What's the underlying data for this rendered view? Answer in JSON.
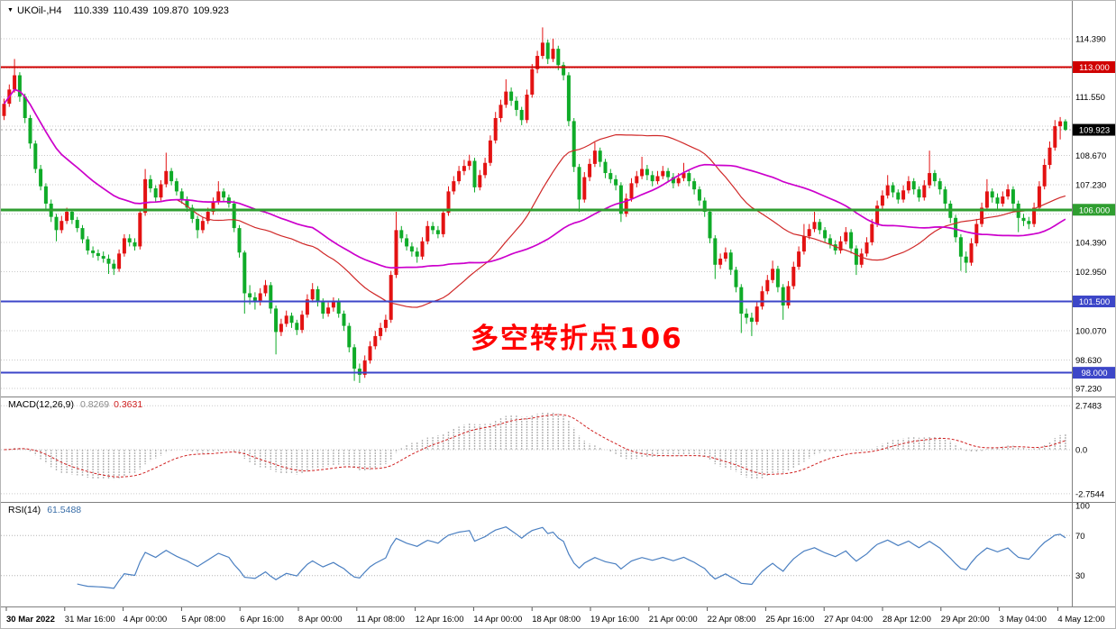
{
  "header": {
    "marker": "▼",
    "symbol": "UKOil-,H4",
    "open": "110.339",
    "high": "110.439",
    "low": "109.870",
    "close": "109.923"
  },
  "annotation": {
    "text": "多空转折点106",
    "color": "#ff0000"
  },
  "indicators": {
    "macd_label": "MACD(12,26,9)",
    "macd_value": "0.8269",
    "macd_signal_value": "0.3631",
    "rsi_label": "RSI(14)",
    "rsi_value": "61.5488"
  },
  "colors": {
    "up": "#e31212",
    "down": "#0fab28",
    "grid": "#c9c9c9",
    "current_price_line": "#a8a8a8",
    "macd_hist": "#b4b4b4",
    "macd_signal": "#d02020",
    "rsi_line": "#4a7fc1",
    "rsi_level": "#b4b4b4",
    "separator": "#808080",
    "axis_text": "#000000"
  },
  "chart_data": {
    "type": "candlestick",
    "symbol": "UKOil-",
    "timeframe": "H4",
    "last_ohlc": {
      "open": 110.339,
      "high": 110.439,
      "low": 109.87,
      "close": 109.923
    },
    "current_price": 109.923,
    "price_axis": {
      "ticks": [
        114.39,
        112.95,
        111.55,
        110.11,
        108.67,
        107.23,
        105.79,
        104.39,
        102.95,
        101.51,
        100.07,
        98.63,
        97.23
      ],
      "visible_labels": [
        "114.390",
        "111.550",
        "108.670",
        "107.230",
        "104.390",
        "102.950",
        "100.070",
        "98.630",
        "97.230"
      ],
      "badges": [
        {
          "label": "113.000",
          "price": 113.0,
          "color": "#d00000"
        },
        {
          "label": "109.923",
          "price": 109.923,
          "color": "#000000"
        },
        {
          "label": "106.000",
          "price": 106.0,
          "color": "#2f9e30"
        },
        {
          "label": "101.500",
          "price": 101.5,
          "color": "#3c46c8"
        },
        {
          "label": "98.000",
          "price": 98.0,
          "color": "#3c46c8"
        }
      ]
    },
    "hlines": [
      {
        "price": 113.0,
        "color": "#d00000",
        "width": 2
      },
      {
        "price": 106.0,
        "color": "#2f9e30",
        "width": 3
      },
      {
        "price": 101.5,
        "color": "#3c46c8",
        "width": 2
      },
      {
        "price": 98.0,
        "color": "#3c46c8",
        "width": 2
      }
    ],
    "moving_averages": [
      {
        "period": 34,
        "color": "#d02828",
        "width": 1.2,
        "name": "ma-fast"
      },
      {
        "period": 60,
        "color": "#cc00cc",
        "width": 1.7,
        "name": "ma-slow"
      }
    ],
    "macd": {
      "params": [
        12,
        26,
        9
      ],
      "value": 0.8269,
      "signal": 0.3631,
      "levels": [
        2.7483,
        0,
        -2.7544
      ],
      "scale": [
        "2.7483",
        "0.0",
        "-2.7544"
      ],
      "range": [
        -3.1,
        3.1
      ]
    },
    "rsi": {
      "period": 14,
      "value": 61.5488,
      "levels": [
        70,
        30
      ],
      "scale": [
        "100",
        "70",
        "30"
      ],
      "range": [
        0,
        100
      ]
    },
    "time_axis": [
      "30 Mar 2022",
      "31 Mar 16:00",
      "4 Apr 00:00",
      "5 Apr 08:00",
      "6 Apr 16:00",
      "8 Apr 00:00",
      "11 Apr 08:00",
      "12 Apr 16:00",
      "14 Apr 00:00",
      "18 Apr 08:00",
      "19 Apr 16:00",
      "21 Apr 00:00",
      "22 Apr 08:00",
      "25 Apr 16:00",
      "27 Apr 04:00",
      "28 Apr 12:00",
      "29 Apr 20:00",
      "3 May 04:00",
      "4 May 12:00"
    ],
    "candles": [
      [
        110.6,
        111.45,
        110.4,
        111.2
      ],
      [
        111.2,
        112.15,
        111.05,
        111.9
      ],
      [
        111.9,
        113.4,
        111.75,
        112.6
      ],
      [
        112.6,
        112.75,
        111.3,
        111.55
      ],
      [
        111.55,
        111.7,
        110.25,
        110.5
      ],
      [
        110.5,
        110.65,
        109.0,
        109.25
      ],
      [
        109.25,
        109.4,
        107.8,
        108.0
      ],
      [
        108.0,
        108.2,
        106.95,
        107.15
      ],
      [
        107.15,
        107.3,
        106.05,
        106.3
      ],
      [
        106.3,
        106.5,
        105.4,
        105.65
      ],
      [
        105.65,
        105.8,
        104.45,
        105.0
      ],
      [
        105.0,
        105.7,
        104.85,
        105.45
      ],
      [
        105.45,
        106.1,
        105.3,
        105.9
      ],
      [
        105.9,
        106.05,
        105.3,
        105.5
      ],
      [
        105.5,
        105.65,
        104.9,
        105.1
      ],
      [
        105.1,
        105.25,
        104.35,
        104.55
      ],
      [
        104.55,
        104.7,
        103.8,
        104.0
      ],
      [
        104.0,
        104.2,
        103.65,
        103.87
      ],
      [
        103.87,
        104.05,
        103.5,
        103.73
      ],
      [
        103.73,
        103.95,
        103.4,
        103.6
      ],
      [
        103.6,
        103.8,
        102.85,
        103.35
      ],
      [
        103.35,
        103.55,
        102.8,
        103.1
      ],
      [
        103.1,
        104.05,
        102.95,
        103.85
      ],
      [
        103.85,
        104.8,
        103.7,
        104.6
      ],
      [
        104.6,
        104.8,
        104.2,
        104.4
      ],
      [
        104.4,
        104.6,
        104.0,
        104.2
      ],
      [
        104.2,
        106.05,
        104.05,
        105.85
      ],
      [
        105.85,
        108.0,
        105.7,
        107.5
      ],
      [
        107.5,
        107.7,
        106.85,
        107.05
      ],
      [
        107.05,
        107.2,
        106.4,
        106.6
      ],
      [
        106.6,
        107.45,
        106.45,
        107.25
      ],
      [
        107.25,
        108.8,
        107.1,
        107.9
      ],
      [
        107.9,
        108.05,
        107.2,
        107.4
      ],
      [
        107.4,
        107.55,
        106.7,
        106.9
      ],
      [
        106.9,
        107.05,
        106.3,
        106.5
      ],
      [
        106.5,
        106.65,
        105.9,
        106.1
      ],
      [
        106.1,
        106.25,
        105.35,
        105.55
      ],
      [
        105.55,
        105.7,
        104.6,
        105.0
      ],
      [
        105.0,
        105.65,
        104.85,
        105.45
      ],
      [
        105.45,
        106.1,
        105.3,
        105.9
      ],
      [
        105.9,
        106.6,
        105.75,
        106.4
      ],
      [
        106.4,
        107.4,
        106.25,
        106.9
      ],
      [
        106.9,
        107.05,
        106.4,
        106.6
      ],
      [
        106.6,
        106.75,
        106.1,
        106.3
      ],
      [
        106.3,
        106.45,
        104.9,
        105.1
      ],
      [
        105.1,
        105.25,
        103.65,
        103.9
      ],
      [
        103.9,
        104.0,
        100.9,
        101.9
      ],
      [
        101.9,
        102.3,
        101.35,
        101.7
      ],
      [
        101.7,
        101.95,
        101.1,
        101.5
      ],
      [
        101.5,
        102.15,
        101.3,
        101.9
      ],
      [
        101.9,
        102.55,
        101.75,
        102.3
      ],
      [
        102.3,
        102.45,
        100.9,
        101.15
      ],
      [
        101.15,
        101.3,
        98.9,
        100.0
      ],
      [
        100.0,
        100.65,
        99.8,
        100.4
      ],
      [
        100.4,
        101.05,
        100.25,
        100.8
      ],
      [
        100.8,
        100.95,
        100.2,
        100.45
      ],
      [
        100.45,
        100.6,
        99.85,
        100.1
      ],
      [
        100.1,
        101.05,
        99.95,
        100.85
      ],
      [
        100.85,
        101.85,
        100.7,
        101.6
      ],
      [
        101.6,
        102.4,
        101.45,
        102.1
      ],
      [
        102.1,
        102.25,
        101.25,
        101.5
      ],
      [
        101.5,
        101.65,
        100.65,
        100.9
      ],
      [
        100.9,
        101.45,
        100.75,
        101.2
      ],
      [
        101.2,
        101.7,
        101.0,
        101.5
      ],
      [
        101.5,
        101.65,
        100.7,
        100.9
      ],
      [
        100.9,
        101.05,
        100.05,
        100.3
      ],
      [
        100.3,
        100.45,
        99.0,
        99.25
      ],
      [
        99.25,
        99.4,
        97.6,
        98.2
      ],
      [
        98.2,
        98.45,
        97.5,
        97.9
      ],
      [
        97.9,
        98.85,
        97.75,
        98.6
      ],
      [
        98.6,
        99.55,
        98.45,
        99.3
      ],
      [
        99.3,
        100.05,
        99.15,
        99.8
      ],
      [
        99.8,
        100.45,
        99.6,
        100.2
      ],
      [
        100.2,
        100.85,
        100.0,
        100.6
      ],
      [
        100.6,
        103.0,
        100.45,
        102.8
      ],
      [
        102.8,
        105.9,
        102.65,
        105.0
      ],
      [
        105.0,
        105.2,
        104.4,
        104.6
      ],
      [
        104.6,
        104.8,
        104.0,
        104.2
      ],
      [
        104.2,
        104.4,
        103.7,
        103.95
      ],
      [
        103.95,
        104.15,
        103.4,
        103.7
      ],
      [
        103.7,
        104.65,
        103.55,
        104.45
      ],
      [
        104.45,
        105.45,
        104.3,
        105.2
      ],
      [
        105.2,
        105.4,
        104.8,
        105.0
      ],
      [
        105.0,
        105.2,
        104.6,
        104.8
      ],
      [
        104.8,
        106.05,
        104.65,
        105.85
      ],
      [
        105.85,
        107.15,
        105.7,
        106.9
      ],
      [
        106.9,
        107.65,
        106.75,
        107.4
      ],
      [
        107.4,
        108.15,
        107.25,
        107.9
      ],
      [
        107.9,
        108.45,
        107.7,
        108.15
      ],
      [
        108.15,
        108.7,
        107.95,
        108.4
      ],
      [
        108.4,
        108.55,
        106.85,
        107.1
      ],
      [
        107.1,
        107.95,
        106.95,
        107.7
      ],
      [
        107.7,
        108.55,
        107.55,
        108.3
      ],
      [
        108.3,
        109.65,
        108.15,
        109.4
      ],
      [
        109.4,
        110.8,
        109.25,
        110.5
      ],
      [
        110.5,
        111.4,
        110.3,
        111.15
      ],
      [
        111.15,
        112.4,
        111.0,
        111.8
      ],
      [
        111.8,
        112.0,
        111.1,
        111.35
      ],
      [
        111.35,
        111.55,
        110.6,
        110.9
      ],
      [
        110.9,
        111.05,
        110.15,
        110.4
      ],
      [
        110.4,
        111.9,
        110.25,
        111.65
      ],
      [
        111.65,
        113.15,
        111.5,
        112.9
      ],
      [
        112.9,
        113.8,
        112.7,
        113.55
      ],
      [
        113.55,
        114.95,
        113.4,
        114.2
      ],
      [
        114.2,
        114.35,
        113.15,
        113.4
      ],
      [
        113.4,
        114.4,
        113.25,
        113.9
      ],
      [
        113.9,
        114.05,
        112.85,
        113.1
      ],
      [
        113.1,
        113.25,
        112.35,
        112.6
      ],
      [
        112.6,
        112.75,
        110.1,
        110.35
      ],
      [
        110.35,
        110.5,
        107.85,
        108.1
      ],
      [
        108.1,
        108.25,
        105.9,
        106.5
      ],
      [
        106.5,
        107.85,
        106.35,
        107.6
      ],
      [
        107.6,
        108.5,
        107.4,
        108.25
      ],
      [
        108.25,
        109.3,
        108.1,
        108.9
      ],
      [
        108.9,
        109.05,
        108.1,
        108.35
      ],
      [
        108.35,
        108.5,
        107.55,
        107.8
      ],
      [
        107.8,
        108.0,
        107.3,
        107.5
      ],
      [
        107.5,
        107.7,
        106.95,
        107.2
      ],
      [
        107.2,
        107.35,
        105.4,
        105.8
      ],
      [
        105.8,
        106.8,
        105.65,
        106.55
      ],
      [
        106.55,
        107.55,
        106.4,
        107.3
      ],
      [
        107.3,
        107.9,
        107.1,
        107.65
      ],
      [
        107.65,
        108.6,
        107.5,
        108.0
      ],
      [
        108.0,
        108.2,
        107.45,
        107.7
      ],
      [
        107.7,
        107.9,
        107.15,
        107.4
      ],
      [
        107.4,
        107.9,
        107.25,
        107.65
      ],
      [
        107.65,
        108.15,
        107.5,
        107.9
      ],
      [
        107.9,
        108.05,
        107.35,
        107.6
      ],
      [
        107.6,
        107.8,
        107.05,
        107.3
      ],
      [
        107.3,
        107.8,
        107.15,
        107.55
      ],
      [
        107.55,
        108.3,
        107.4,
        107.8
      ],
      [
        107.8,
        107.95,
        107.15,
        107.4
      ],
      [
        107.4,
        107.55,
        106.75,
        107.0
      ],
      [
        107.0,
        107.15,
        106.2,
        106.45
      ],
      [
        106.45,
        106.6,
        105.65,
        105.9
      ],
      [
        105.9,
        106.05,
        104.35,
        104.6
      ],
      [
        104.6,
        104.75,
        102.6,
        103.3
      ],
      [
        103.3,
        103.85,
        103.1,
        103.6
      ],
      [
        103.6,
        104.15,
        103.45,
        103.9
      ],
      [
        103.9,
        104.05,
        102.8,
        103.05
      ],
      [
        103.05,
        103.2,
        101.95,
        102.2
      ],
      [
        102.2,
        102.35,
        99.95,
        100.9
      ],
      [
        100.9,
        101.15,
        100.4,
        100.7
      ],
      [
        100.7,
        100.95,
        99.8,
        100.5
      ],
      [
        100.5,
        101.5,
        100.35,
        101.25
      ],
      [
        101.25,
        102.25,
        101.1,
        102.0
      ],
      [
        102.0,
        102.8,
        101.85,
        102.55
      ],
      [
        102.55,
        103.5,
        102.4,
        103.1
      ],
      [
        103.1,
        103.25,
        101.95,
        102.2
      ],
      [
        102.2,
        102.35,
        100.6,
        101.3
      ],
      [
        101.3,
        102.5,
        101.15,
        102.25
      ],
      [
        102.25,
        103.45,
        102.1,
        103.2
      ],
      [
        103.2,
        104.2,
        103.05,
        103.95
      ],
      [
        103.95,
        105.3,
        103.8,
        104.7
      ],
      [
        104.7,
        105.3,
        104.55,
        105.05
      ],
      [
        105.05,
        105.9,
        104.9,
        105.4
      ],
      [
        105.4,
        105.55,
        104.8,
        105.0
      ],
      [
        105.0,
        105.15,
        104.4,
        104.6
      ],
      [
        104.6,
        104.8,
        104.1,
        104.3
      ],
      [
        104.3,
        104.5,
        103.8,
        104.0
      ],
      [
        104.0,
        104.7,
        103.85,
        104.45
      ],
      [
        104.45,
        105.15,
        104.3,
        104.9
      ],
      [
        104.9,
        105.05,
        103.85,
        104.1
      ],
      [
        104.1,
        104.25,
        102.8,
        103.3
      ],
      [
        103.3,
        104.1,
        103.15,
        103.85
      ],
      [
        103.85,
        104.65,
        103.7,
        104.4
      ],
      [
        104.4,
        105.55,
        104.25,
        105.3
      ],
      [
        105.3,
        106.45,
        105.15,
        106.2
      ],
      [
        106.2,
        106.95,
        106.05,
        106.7
      ],
      [
        106.7,
        107.7,
        106.55,
        107.2
      ],
      [
        107.2,
        107.35,
        106.6,
        106.85
      ],
      [
        106.85,
        107.0,
        106.3,
        106.5
      ],
      [
        106.5,
        107.2,
        106.35,
        106.95
      ],
      [
        106.95,
        107.65,
        106.8,
        107.4
      ],
      [
        107.4,
        107.55,
        106.75,
        107.0
      ],
      [
        107.0,
        107.15,
        106.4,
        106.6
      ],
      [
        106.6,
        107.45,
        106.45,
        107.2
      ],
      [
        107.2,
        108.9,
        107.05,
        107.8
      ],
      [
        107.8,
        107.95,
        107.15,
        107.4
      ],
      [
        107.4,
        107.55,
        106.75,
        107.0
      ],
      [
        107.0,
        107.15,
        106.05,
        106.3
      ],
      [
        106.3,
        106.45,
        105.35,
        105.6
      ],
      [
        105.6,
        105.75,
        104.4,
        104.65
      ],
      [
        104.65,
        104.8,
        103.0,
        103.7
      ],
      [
        103.7,
        103.95,
        102.9,
        103.4
      ],
      [
        103.4,
        104.6,
        103.25,
        104.35
      ],
      [
        104.35,
        105.55,
        104.2,
        105.3
      ],
      [
        105.3,
        106.35,
        105.15,
        106.1
      ],
      [
        106.1,
        107.5,
        105.95,
        106.9
      ],
      [
        106.9,
        107.05,
        106.35,
        106.6
      ],
      [
        106.6,
        106.8,
        106.05,
        106.3
      ],
      [
        106.3,
        106.9,
        106.15,
        106.65
      ],
      [
        106.65,
        107.25,
        106.5,
        107.0
      ],
      [
        107.0,
        107.15,
        106.05,
        106.3
      ],
      [
        106.3,
        106.45,
        104.9,
        105.6
      ],
      [
        105.6,
        105.8,
        105.2,
        105.45
      ],
      [
        105.45,
        105.65,
        105.05,
        105.3
      ],
      [
        105.3,
        106.35,
        105.15,
        106.1
      ],
      [
        106.1,
        107.4,
        105.95,
        107.15
      ],
      [
        107.15,
        108.5,
        107.0,
        108.2
      ],
      [
        108.2,
        109.35,
        108.0,
        109.05
      ],
      [
        109.05,
        110.4,
        108.9,
        110.1
      ],
      [
        110.1,
        110.55,
        109.45,
        110.34
      ],
      [
        110.34,
        110.44,
        109.87,
        109.92
      ]
    ]
  }
}
